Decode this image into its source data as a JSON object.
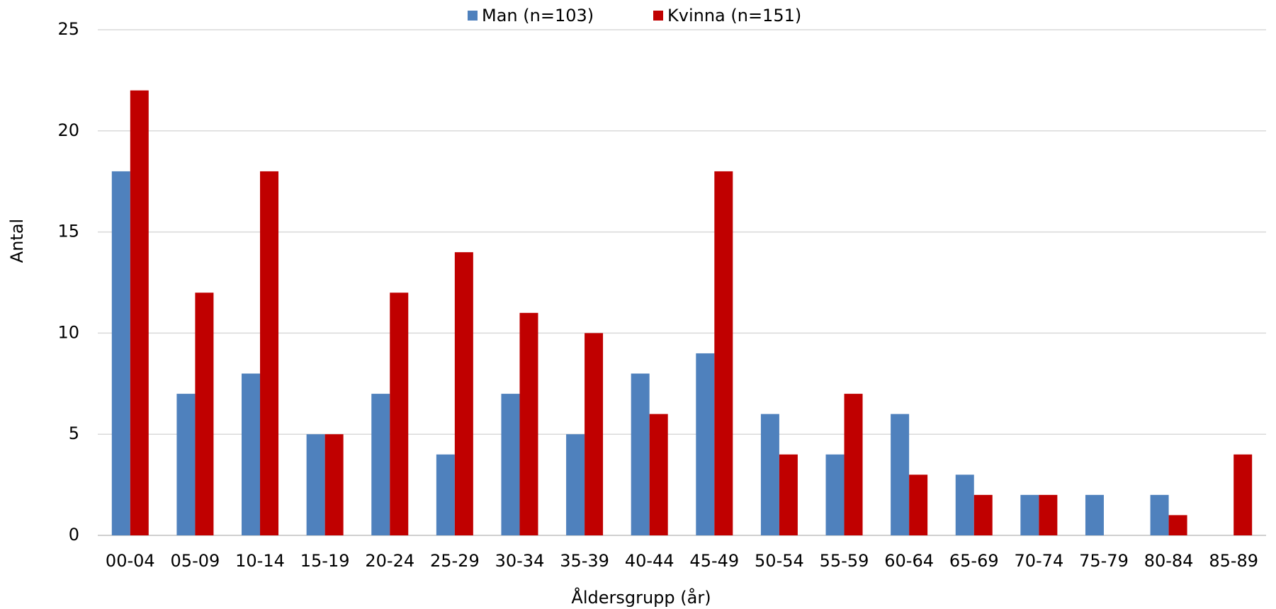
{
  "chart_data": {
    "type": "bar",
    "categories": [
      "00-04",
      "05-09",
      "10-14",
      "15-19",
      "20-24",
      "25-29",
      "30-34",
      "35-39",
      "40-44",
      "45-49",
      "50-54",
      "55-59",
      "60-64",
      "65-69",
      "70-74",
      "75-79",
      "80-84",
      "85-89"
    ],
    "series": [
      {
        "name": "Man (n=103)",
        "color": "#4f81bd",
        "values": [
          18,
          7,
          8,
          5,
          7,
          4,
          7,
          5,
          8,
          9,
          6,
          4,
          6,
          3,
          2,
          2,
          2,
          0
        ]
      },
      {
        "name": "Kvinna (n=151)",
        "color": "#c00000",
        "values": [
          22,
          12,
          18,
          5,
          12,
          14,
          11,
          10,
          6,
          18,
          4,
          7,
          3,
          2,
          2,
          0,
          1,
          4
        ]
      }
    ],
    "x_label": "Åldersgrupp (år)",
    "y_label": "Antal",
    "ylim": [
      0,
      25
    ],
    "yticks": [
      0,
      5,
      10,
      15,
      20,
      25
    ],
    "grid": true,
    "legend": "top"
  }
}
